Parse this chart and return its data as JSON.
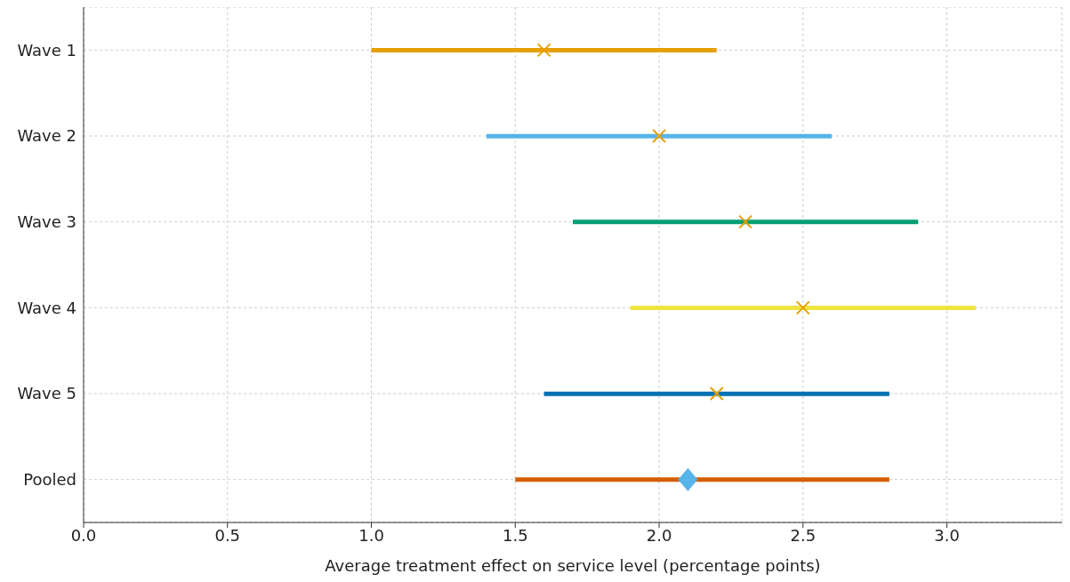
{
  "chart_data": {
    "type": "bar",
    "orientation": "horizontal",
    "xlabel": "Average treatment effect on service level (percentage points)",
    "categories": [
      "Wave 1",
      "Wave 2",
      "Wave 3",
      "Wave 4",
      "Wave 5",
      "Pooled"
    ],
    "series": [
      {
        "base": [
          1.0,
          1.4,
          1.7,
          1.9,
          1.6,
          1.5
        ],
        "values": [
          1.2,
          1.2,
          1.2,
          1.2,
          1.2,
          1.3
        ],
        "colors": [
          "#e69f00",
          "#56b4e9",
          "#009e73",
          "#f0e442",
          "#0072b2",
          "#d55e00"
        ]
      },
      {
        "type": "scatter",
        "marker": "cross",
        "color": "#e69f00",
        "values": [
          1.6,
          2.0,
          2.3,
          2.5,
          2.2,
          null
        ]
      },
      {
        "type": "scatter",
        "marker": "diamond",
        "color": "#56b4e9",
        "values": [
          null,
          null,
          null,
          null,
          null,
          2.1
        ]
      }
    ],
    "xlim": [
      0,
      3.4
    ],
    "xticks": [
      {
        "value": 0,
        "label": "0.0"
      },
      {
        "value": 0.5,
        "label": "0.5"
      },
      {
        "value": 1,
        "label": "1.0"
      },
      {
        "value": 1.5,
        "label": "1.5"
      },
      {
        "value": 2,
        "label": "2.0"
      },
      {
        "value": 2.5,
        "label": "2.5"
      },
      {
        "value": 3,
        "label": "3.0"
      }
    ],
    "grid": true
  }
}
